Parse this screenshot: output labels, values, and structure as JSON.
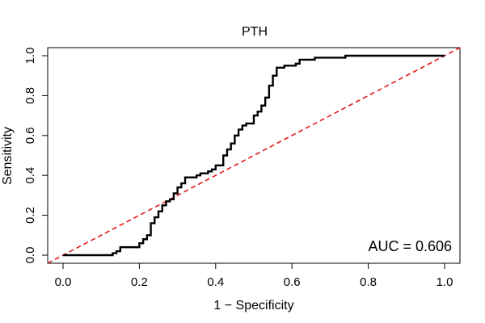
{
  "chart_data": {
    "type": "line",
    "title": "PTH",
    "xlabel": "1 − Specificity",
    "ylabel": "Sensitivity",
    "xlim": [
      0,
      1
    ],
    "ylim": [
      0,
      1
    ],
    "x_ticks": [
      "0.0",
      "0.2",
      "0.4",
      "0.6",
      "0.8",
      "1.0"
    ],
    "y_ticks": [
      "0.0",
      "0.2",
      "0.4",
      "0.6",
      "0.8",
      "1.0"
    ],
    "grid": false,
    "annotation": "AUC = 0.606",
    "series": [
      {
        "style": "solid",
        "color": "#000000",
        "x": [
          0,
          0.12,
          0.13,
          0.14,
          0.15,
          0.2,
          0.2,
          0.21,
          0.22,
          0.23,
          0.23,
          0.24,
          0.25,
          0.26,
          0.26,
          0.27,
          0.28,
          0.29,
          0.3,
          0.31,
          0.32,
          0.34,
          0.35,
          0.36,
          0.36,
          0.38,
          0.39,
          0.4,
          0.42,
          0.43,
          0.44,
          0.45,
          0.46,
          0.47,
          0.48,
          0.5,
          0.51,
          0.52,
          0.53,
          0.54,
          0.55,
          0.56,
          0.58,
          0.6,
          0.61,
          0.62,
          0.62,
          0.64,
          0.66,
          0.74,
          1.0
        ],
        "y": [
          0,
          0,
          0.01,
          0.02,
          0.04,
          0.04,
          0.06,
          0.08,
          0.1,
          0.13,
          0.16,
          0.19,
          0.22,
          0.23,
          0.25,
          0.27,
          0.28,
          0.31,
          0.34,
          0.36,
          0.39,
          0.39,
          0.4,
          0.41,
          0.41,
          0.42,
          0.43,
          0.45,
          0.5,
          0.53,
          0.56,
          0.6,
          0.63,
          0.65,
          0.66,
          0.7,
          0.72,
          0.75,
          0.79,
          0.85,
          0.9,
          0.94,
          0.95,
          0.95,
          0.96,
          0.97,
          0.98,
          0.98,
          0.99,
          1.0,
          1.0
        ]
      },
      {
        "style": "dashed",
        "color": "#e31a1c",
        "x": [
          0,
          1
        ],
        "y": [
          0,
          1
        ]
      }
    ]
  }
}
